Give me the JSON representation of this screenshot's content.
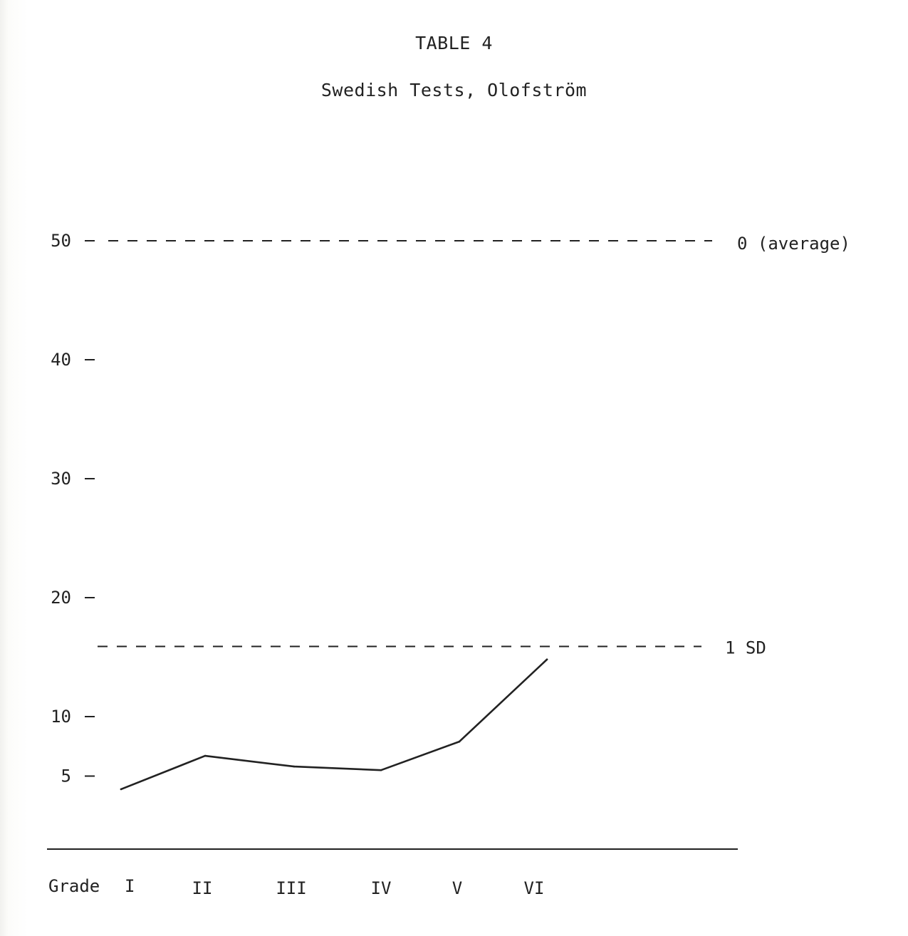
{
  "header": {
    "table_number": "TABLE 4",
    "title": "Swedish Tests, Olofström"
  },
  "chart_data": {
    "type": "line",
    "title": "Swedish Tests, Olofström",
    "xlabel": "Grade",
    "ylabel": "",
    "categories": [
      "I",
      "II",
      "III",
      "IV",
      "V",
      "VI"
    ],
    "series": [
      {
        "values": [
          3.9,
          6.7,
          5.8,
          5.5,
          7.9,
          14.8
        ]
      }
    ],
    "y_ticks": [
      {
        "value": 50,
        "label": "50"
      },
      {
        "value": 40,
        "label": "40"
      },
      {
        "value": 30,
        "label": "30"
      },
      {
        "value": 20,
        "label": "20"
      },
      {
        "value": 10,
        "label": "10"
      },
      {
        "value": 5,
        "label": "5"
      }
    ],
    "reference_lines": [
      {
        "value": 50,
        "label": "0 (average)"
      },
      {
        "value": 15.9,
        "label": "1 SD"
      }
    ],
    "ylim": [
      0,
      50
    ],
    "grid": false,
    "legend": "none",
    "colors": {
      "ink": "#222222",
      "paper": "#ffffff"
    }
  }
}
